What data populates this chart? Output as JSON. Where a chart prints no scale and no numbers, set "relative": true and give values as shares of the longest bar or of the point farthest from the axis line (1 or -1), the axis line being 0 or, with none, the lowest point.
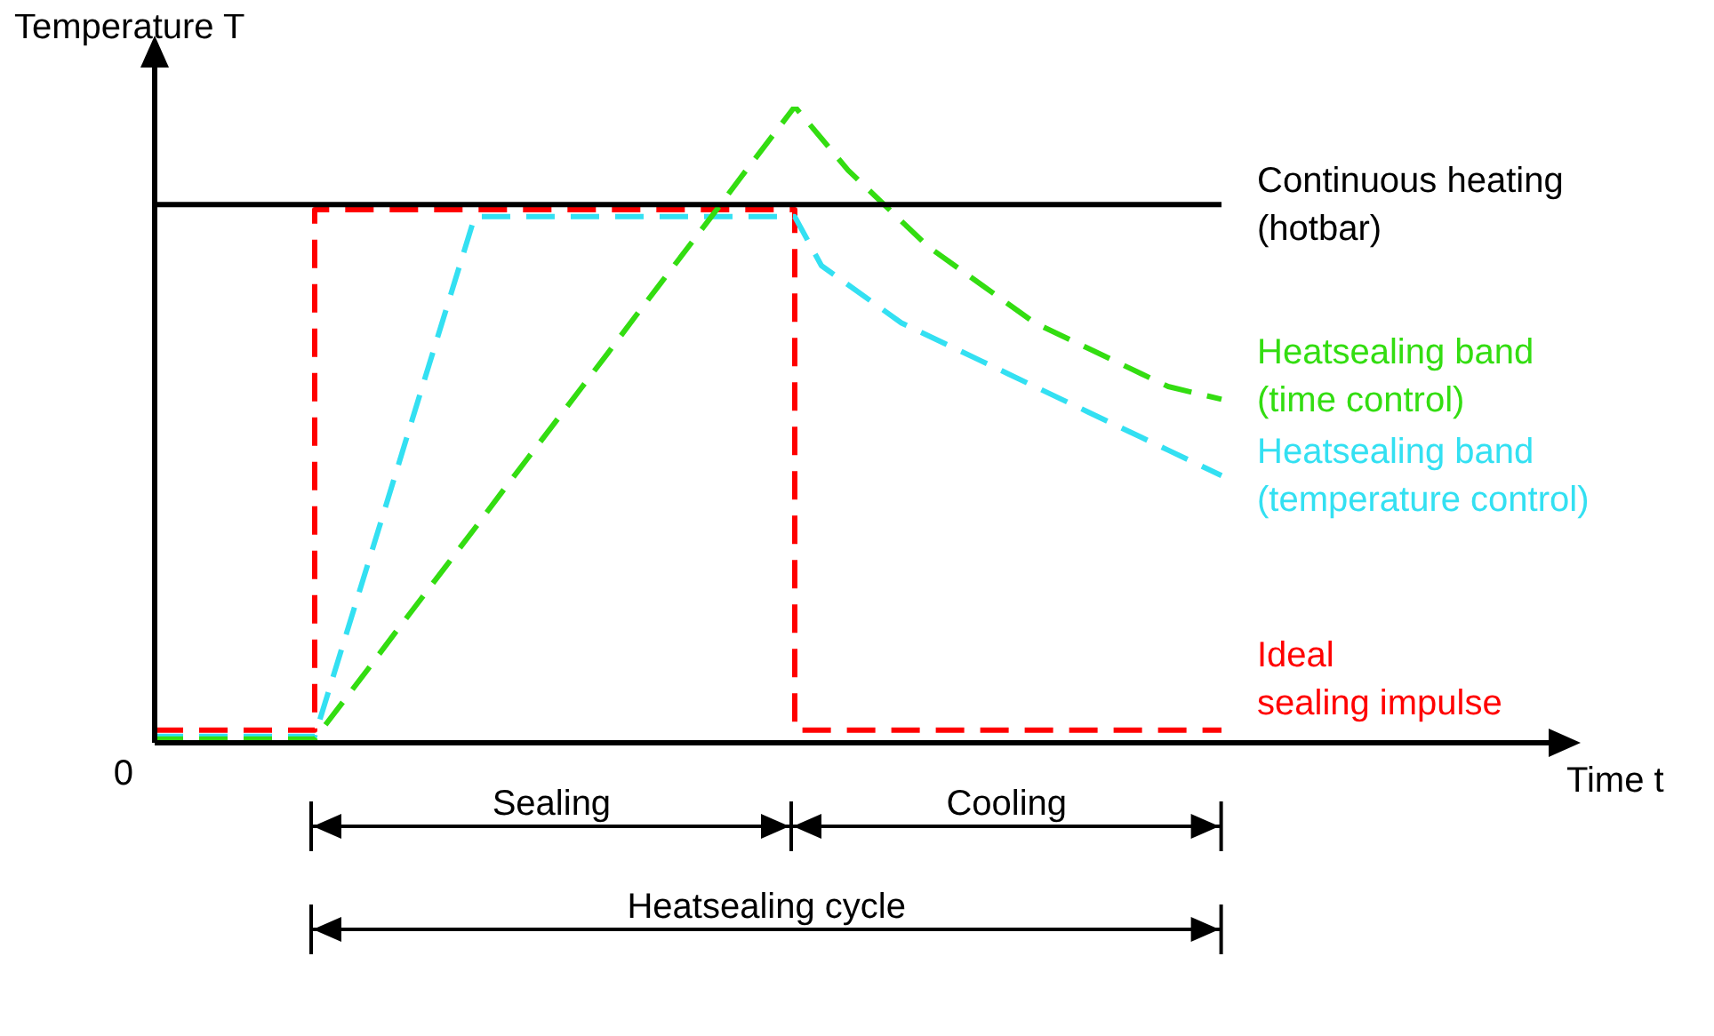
{
  "chart_data": {
    "type": "line",
    "relative": true,
    "ylabel": "Temperature T",
    "legend": false,
    "marker": "none",
    "annotations": [
      "0",
      "Sealing",
      "Cooling",
      "Heatsealing cycle",
      "Time t"
    ],
    "categories": [
      null,
      null,
      null,
      null,
      null,
      null,
      null,
      null,
      null,
      null,
      null,
      null,
      null,
      null,
      null,
      null,
      null,
      null,
      null,
      null,
      null,
      null,
      null,
      null,
      null,
      null,
      null,
      null,
      null,
      null,
      null,
      null,
      null,
      null,
      null,
      null,
      null,
      null,
      null,
      null,
      null
    ],
    "series": [
      {
        "name": "Continuous heating\n(hotbar)",
        "color": "#000000",
        "line_style": "solid",
        "values": [
          0.846,
          0.846,
          0.846,
          0.846,
          0.846,
          0.846,
          0.846,
          0.846,
          0.846,
          0.846,
          0.846,
          0.846,
          0.846,
          0.846,
          0.846,
          0.846,
          0.846,
          0.846,
          0.846,
          0.846,
          0.846,
          0.846,
          0.846,
          0.846,
          0.846,
          0.846,
          0.846,
          0.846,
          0.846,
          0.846,
          0.846,
          0.846,
          0.846,
          0.846,
          0.846,
          0.846,
          0.846,
          0.846,
          0.846,
          0.846,
          0.846
        ]
      },
      {
        "name": "Heatsealing band\n(time control)",
        "color": "#33dd11",
        "line_style": "dashed",
        "values": [
          0.006,
          0.006,
          0.006,
          0.006,
          0.006,
          0.006,
          0.006,
          0.061,
          0.116,
          0.172,
          0.227,
          0.282,
          0.337,
          0.393,
          0.448,
          0.503,
          0.558,
          0.613,
          0.669,
          0.724,
          0.779,
          0.834,
          0.89,
          0.945,
          1,
          0.95,
          0.9,
          0.86,
          0.82,
          0.78,
          0.75,
          0.72,
          0.69,
          0.66,
          0.64,
          0.62,
          0.6,
          0.58,
          0.56,
          0.55,
          0.54
        ]
      },
      {
        "name": "Heatsealing band\n(temperature control)",
        "color": "#33e0f2",
        "line_style": "dashed",
        "values": [
          0.01,
          0.01,
          0.01,
          0.01,
          0.01,
          0.01,
          0.01,
          0.146,
          0.282,
          0.418,
          0.555,
          0.691,
          0.827,
          0.827,
          0.827,
          0.827,
          0.827,
          0.827,
          0.827,
          0.827,
          0.827,
          0.827,
          0.827,
          0.827,
          0.827,
          0.75,
          0.72,
          0.69,
          0.66,
          0.64,
          0.62,
          0.6,
          0.58,
          0.56,
          0.54,
          0.52,
          0.5,
          0.48,
          0.46,
          0.44,
          0.42
        ]
      },
      {
        "name": "Ideal\nsealing impulse",
        "type": "step",
        "color": "#ff0000",
        "line_style": "dashed",
        "values": [
          0.02,
          0.02,
          0.02,
          0.02,
          0.02,
          0.02,
          0.838,
          0.838,
          0.838,
          0.838,
          0.838,
          0.838,
          0.838,
          0.838,
          0.838,
          0.838,
          0.838,
          0.838,
          0.838,
          0.838,
          0.838,
          0.838,
          0.838,
          0.838,
          0.02,
          0.02,
          0.02,
          0.02,
          0.02,
          0.02,
          0.02,
          0.02,
          0.02,
          0.02,
          0.02,
          0.02,
          0.02,
          0.02,
          0.02,
          0.02,
          0.02
        ]
      }
    ]
  }
}
